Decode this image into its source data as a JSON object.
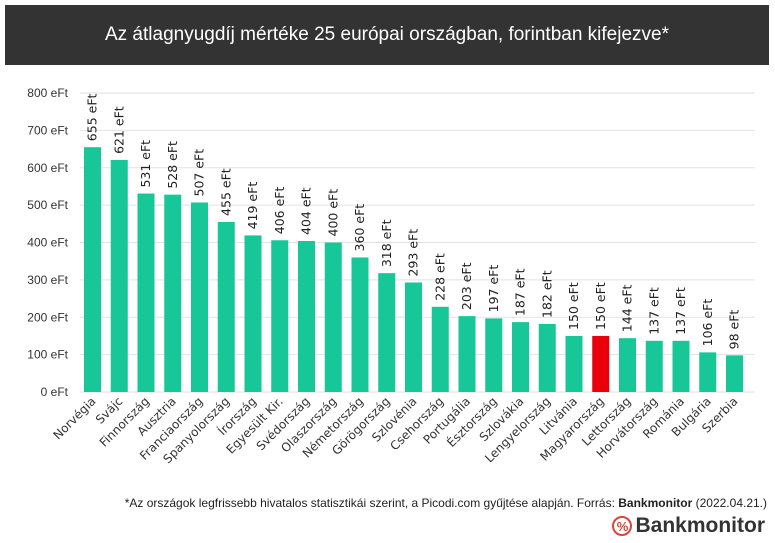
{
  "chart_data": {
    "type": "bar",
    "title": "Az átlagnyugdíj mértéke 25 európai országban, forintban kifejezve*",
    "xlabel": "",
    "ylabel": "",
    "ylim": [
      0,
      800
    ],
    "yticks": [
      0,
      100,
      200,
      300,
      400,
      500,
      600,
      700,
      800
    ],
    "tick_suffix": " eFt",
    "value_suffix": " eFt",
    "grid": true,
    "categories": [
      "Norvégia",
      "Svájc",
      "Finnország",
      "Ausztria",
      "Franciaország",
      "Spanyolország",
      "Írország",
      "Egyesült Kir.",
      "Svédország",
      "Olaszország",
      "Németország",
      "Görögország",
      "Szlovénia",
      "Csehország",
      "Portugália",
      "Észtország",
      "Szlovákia",
      "Lengyelország",
      "Litvánia",
      "Magyarország",
      "Lettország",
      "Horvátország",
      "Románia",
      "Bulgária",
      "Szerbia"
    ],
    "values": [
      655,
      621,
      531,
      528,
      507,
      455,
      419,
      406,
      404,
      400,
      360,
      318,
      293,
      228,
      203,
      197,
      187,
      182,
      150,
      150,
      144,
      137,
      137,
      106,
      98
    ],
    "highlight": "Magyarország",
    "colors": {
      "bar": "#17c798",
      "highlight": "#e8000b"
    }
  },
  "footer": {
    "note": "*Az országok legfrissebb hivatalos statisztikái szerint, a Picodi.com gyűjtése alapján. Forrás: ",
    "source": "Bankmonitor",
    "date": " (2022.04.21.)"
  },
  "logo": {
    "symbol": "%",
    "name": "Bankmonitor"
  }
}
